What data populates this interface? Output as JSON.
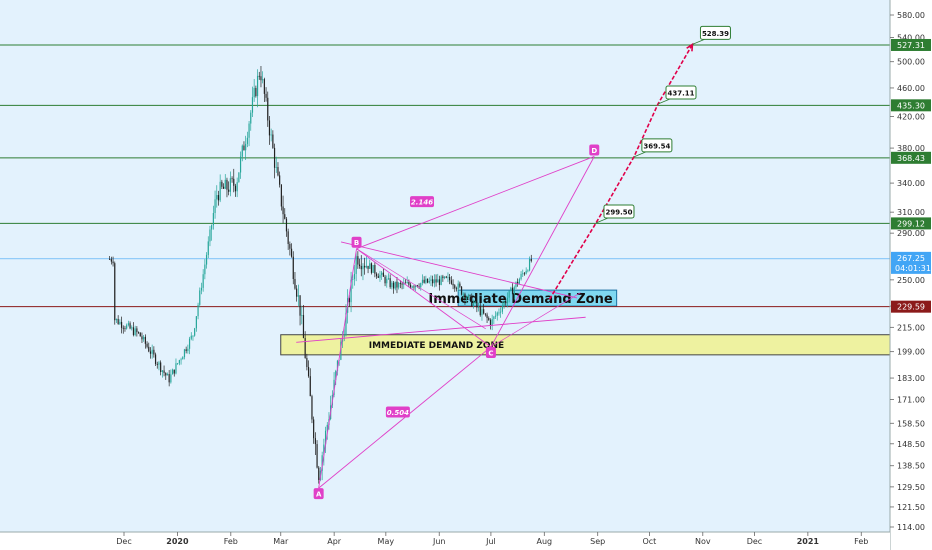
{
  "chart_data": {
    "type": "candlestick",
    "x_axis": {
      "tick_labels": [
        "Dec",
        "2020",
        "Feb",
        "Mar",
        "Apr",
        "May",
        "Jun",
        "Jul",
        "Aug",
        "Sep",
        "Oct",
        "Nov",
        "Dec",
        "2021",
        "Feb"
      ],
      "bold_labels": [
        "2020",
        "2021"
      ]
    },
    "y_axis": {
      "scale": "log",
      "range": [
        112,
        600
      ],
      "tick_labels": [
        "580.00",
        "540.00",
        "500.00",
        "460.00",
        "420.00",
        "380.00",
        "340.00",
        "310.00",
        "290.00",
        "250.00",
        "230.00",
        "215.00",
        "199.00",
        "183.00",
        "171.00",
        "158.50",
        "148.50",
        "138.50",
        "129.50",
        "121.50",
        "114.00"
      ]
    },
    "colors": {
      "background": "#e3f2fd",
      "bull": "#26a69a",
      "bear": "#222222",
      "pattern": "#e040c8",
      "projection": "#e0004a",
      "level_line": "#2e7d32",
      "zone_upper": "#7fd8f0",
      "zone_lower": "#eef2a0",
      "support_line": "#8b1a1a",
      "current_price": "#42a5f5"
    },
    "horizontal_levels": [
      {
        "price": 527.31,
        "label": "527.31",
        "color": "#2e7d32"
      },
      {
        "price": 435.3,
        "label": "435.30",
        "color": "#2e7d32"
      },
      {
        "price": 368.43,
        "label": "368.43",
        "color": "#2e7d32"
      },
      {
        "price": 299.12,
        "label": "299.12",
        "color": "#2e7d32"
      },
      {
        "price": 229.59,
        "label": "229.59",
        "color": "#8b1a1a"
      }
    ],
    "current_price": {
      "price": 267.25,
      "label": "267.25",
      "countdown": "04:01:31"
    },
    "zones": [
      {
        "name": "Immediate Demand Zone",
        "top": 242,
        "bottom": 230,
        "x_start": "2020-06-12",
        "x_end": "2020-09-12",
        "color": "#7fd8f0"
      },
      {
        "name": "IMMEDIATE DEMAND ZONE",
        "top": 210,
        "bottom": 197,
        "x_start": "2020-03-01",
        "x_end": "2021-03-01",
        "color": "#eef2a0"
      }
    ],
    "pattern_points": [
      {
        "label": "A",
        "date": "2020-03-23",
        "price": 129.0
      },
      {
        "label": "B",
        "date": "2020-04-14",
        "price": 276.0
      },
      {
        "label": "C",
        "date": "2020-07-01",
        "price": 202.0
      },
      {
        "label": "D",
        "date": "2020-08-30",
        "price": 370.0
      }
    ],
    "ratios": [
      {
        "label": "2.146",
        "date": "2020-05-22",
        "price": 320.0
      },
      {
        "label": "0.504",
        "date": "2020-05-08",
        "price": 164.0
      }
    ],
    "projection_targets": [
      {
        "label": "299.50",
        "date": "2020-08-31",
        "price": 299.5
      },
      {
        "label": "369.54",
        "date": "2020-09-22",
        "price": 369.54
      },
      {
        "label": "437.11",
        "date": "2020-10-06",
        "price": 437.11
      },
      {
        "label": "528.39",
        "date": "2020-10-26",
        "price": 528.39
      }
    ],
    "series": [
      {
        "name": "",
        "ohlc_sample": [
          {
            "date": "2019-11-25",
            "open": 220,
            "high": 226,
            "low": 216,
            "close": 221
          },
          {
            "date": "2019-12-10",
            "open": 213,
            "high": 216,
            "low": 208,
            "close": 210
          },
          {
            "date": "2019-12-27",
            "open": 186,
            "high": 192,
            "low": 178,
            "close": 182
          },
          {
            "date": "2020-01-10",
            "open": 208,
            "high": 214,
            "low": 204,
            "close": 210
          },
          {
            "date": "2020-01-24",
            "open": 300,
            "high": 340,
            "low": 295,
            "close": 330
          },
          {
            "date": "2020-02-04",
            "open": 350,
            "high": 372,
            "low": 330,
            "close": 340
          },
          {
            "date": "2020-02-18",
            "open": 460,
            "high": 500,
            "low": 450,
            "close": 490
          },
          {
            "date": "2020-02-28",
            "open": 360,
            "high": 380,
            "low": 340,
            "close": 345
          },
          {
            "date": "2020-03-12",
            "open": 280,
            "high": 290,
            "low": 220,
            "close": 230
          },
          {
            "date": "2020-03-23",
            "open": 140,
            "high": 160,
            "low": 129,
            "close": 135
          },
          {
            "date": "2020-04-14",
            "open": 260,
            "high": 276,
            "low": 250,
            "close": 270
          },
          {
            "date": "2020-05-05",
            "open": 240,
            "high": 255,
            "low": 225,
            "close": 245
          },
          {
            "date": "2020-06-08",
            "open": 260,
            "high": 268,
            "low": 240,
            "close": 250
          },
          {
            "date": "2020-07-01",
            "open": 220,
            "high": 228,
            "low": 212,
            "close": 218
          },
          {
            "date": "2020-07-25",
            "open": 240,
            "high": 268,
            "low": 236,
            "close": 267
          }
        ]
      }
    ]
  }
}
